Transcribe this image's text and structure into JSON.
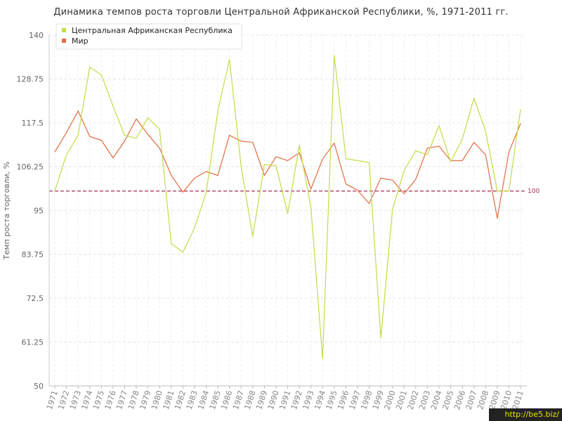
{
  "chart_data": {
    "type": "line",
    "title": "Динамика темпов роста торговли Центральной Африканской Республики, %, 1971-2011 гг.",
    "xlabel": "",
    "ylabel": "Темп роста торговли, %",
    "ylim": [
      50,
      140
    ],
    "yticks": [
      "50",
      "61.25",
      "72.5",
      "83.75",
      "95",
      "106.25",
      "117.5",
      "128.75",
      "140"
    ],
    "x": [
      "1971",
      "1972",
      "1973",
      "1974",
      "1975",
      "1976",
      "1977",
      "1978",
      "1979",
      "1980",
      "1981",
      "1982",
      "1983",
      "1984",
      "1985",
      "1986",
      "1987",
      "1988",
      "1989",
      "1990",
      "1991",
      "1992",
      "1993",
      "1994",
      "1995",
      "1996",
      "1997",
      "1998",
      "1999",
      "2000",
      "2001",
      "2002",
      "2003",
      "2004",
      "2005",
      "2006",
      "2007",
      "2008",
      "2009",
      "2010",
      "2011"
    ],
    "series": [
      {
        "name": "Центральная Африканская Республика",
        "color": "#c3dc45",
        "values": [
          100,
          109.3,
          114.3,
          131.8,
          129.8,
          121.8,
          114.3,
          113.5,
          118.8,
          115.8,
          86.5,
          84.3,
          90.5,
          99.6,
          120.5,
          133.8,
          106.3,
          88.3,
          106.8,
          106.5,
          94.2,
          111.8,
          95.8,
          57,
          134.8,
          108.3,
          107.8,
          107.3,
          62.3,
          95.3,
          105.3,
          110.3,
          109.3,
          116.8,
          107.5,
          113.3,
          123.8,
          115.3,
          100,
          100,
          121
        ]
      },
      {
        "name": "Мир",
        "color": "#e26b3e",
        "values": [
          110,
          115,
          120.5,
          114,
          113,
          108.5,
          112.8,
          118.5,
          114.5,
          111,
          104,
          99.7,
          103.3,
          105,
          104,
          114.3,
          112.8,
          112.5,
          104,
          108.8,
          107.8,
          109.8,
          100.5,
          108.2,
          112.3,
          101.8,
          100.2,
          96.8,
          103.3,
          102.8,
          99.3,
          103,
          111,
          111.5,
          107.8,
          107.8,
          112.5,
          109.3,
          93,
          110,
          117.3
        ]
      }
    ],
    "reference_line": {
      "value": 100,
      "label": "100",
      "color": "#a03050"
    },
    "grid": true,
    "legend": "top-left"
  },
  "watermark": "http://be5.biz/"
}
